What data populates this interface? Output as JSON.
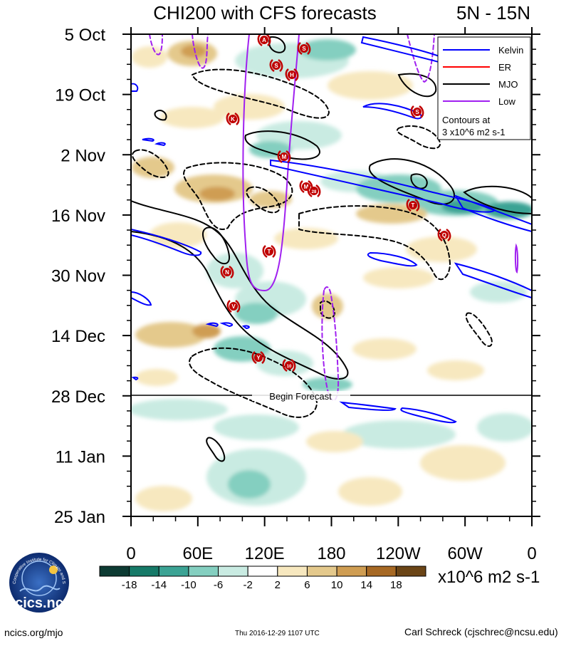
{
  "chart_data": {
    "type": "heatmap",
    "title": "CHI200 with CFS forecasts",
    "subtitle": "5N - 15N",
    "x_ticks": [
      "0",
      "60E",
      "120E",
      "180",
      "120W",
      "60W",
      "0"
    ],
    "y_ticks": [
      "5 Oct",
      "19 Oct",
      "2 Nov",
      "16 Nov",
      "30 Nov",
      "14 Dec",
      "28 Dec",
      "11 Jan",
      "25 Jan"
    ],
    "forecast_label": "Begin Forecast",
    "legend": {
      "entries": [
        {
          "label": "Kelvin",
          "color": "#0000ff"
        },
        {
          "label": "ER",
          "color": "#ff0000"
        },
        {
          "label": "MJO",
          "color": "#000000"
        },
        {
          "label": "Low",
          "color": "#a020f0"
        }
      ],
      "note_line1": "Contours at",
      "note_line2": "3 x10^6 m2 s-1"
    },
    "colorbar": {
      "tick_labels": [
        "-18",
        "-14",
        "-10",
        "-6",
        "-2",
        "2",
        "6",
        "10",
        "14",
        "18"
      ],
      "colors": [
        "#0d3b33",
        "#167a68",
        "#3ba394",
        "#84cfc0",
        "#c9ebe2",
        "#ffffff",
        "#f7e8bf",
        "#e4c98c",
        "#cf9d52",
        "#a76924",
        "#6b4516"
      ],
      "units": "x10^6 m2 s-1"
    },
    "storm_labels": [
      "A",
      "S",
      "S",
      "H",
      "S",
      "K",
      "M",
      "M",
      "28",
      "T",
      "Q",
      "T",
      "N",
      "V",
      "Y",
      "10"
    ]
  },
  "logo_text": "cics.nc",
  "logo_ring_text": "Cooperative Institute for Climate and Satellites",
  "footer": {
    "left": "ncics.org/mjo",
    "middle": "Thu 2016-12-29 1107 UTC",
    "right": "Carl Schreck (cjschrec@ncsu.edu)"
  }
}
